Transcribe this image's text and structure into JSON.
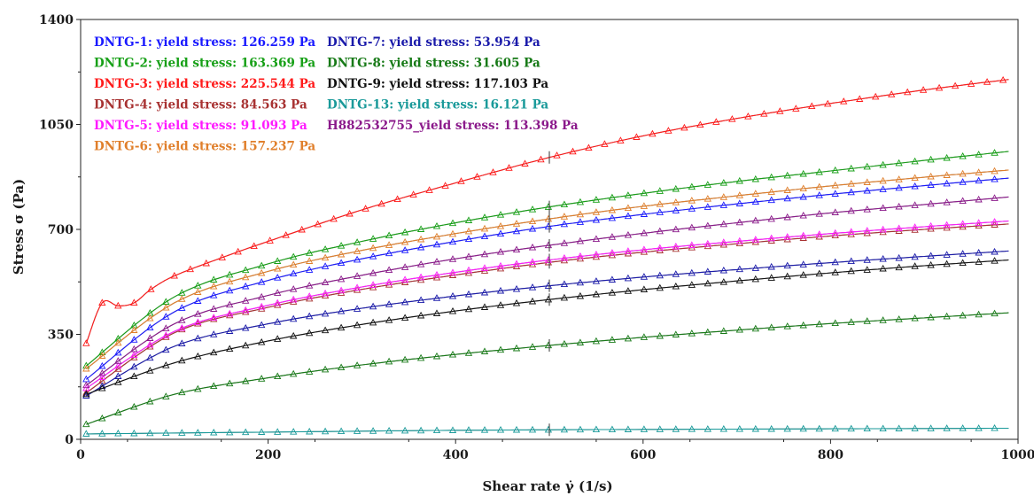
{
  "chart_data": {
    "type": "line",
    "xlabel": "Shear rate γ̇ (1/s)",
    "ylabel": "Stress σ (Pa)",
    "xlim": [
      0,
      1000
    ],
    "ylim": [
      0,
      1400
    ],
    "xticks": [
      0,
      200,
      400,
      600,
      800,
      1000
    ],
    "yticks": [
      0,
      350,
      700,
      1050,
      1400
    ],
    "xtick_labels": [
      "0",
      "200",
      "400",
      "600",
      "800",
      "1000"
    ],
    "ytick_labels": [
      "0",
      "350",
      "700",
      "1050",
      "1400"
    ],
    "grid": false,
    "legend_position": "top-left",
    "marker": "open-triangle",
    "fit_line_color": "#5a5a5a",
    "reference_marker_x": 500,
    "series": [
      {
        "name": "DNTG-1: yield stress: 126.259 Pa",
        "color": "#1a1aff",
        "x": [
          6,
          100,
          200,
          300,
          400,
          500,
          600,
          700,
          800,
          900,
          990
        ],
        "y": [
          200,
          425,
          530,
          602,
          660,
          710,
          750,
          785,
          817,
          846,
          871
        ]
      },
      {
        "name": "DNTG-2: yield stress: 163.369 Pa",
        "color": "#17a017",
        "x": [
          6,
          100,
          200,
          300,
          400,
          500,
          600,
          700,
          800,
          900,
          990
        ],
        "y": [
          245,
          475,
          585,
          660,
          722,
          775,
          820,
          860,
          895,
          930,
          960
        ]
      },
      {
        "name": "DNTG-3: yield stress: 225.544 Pa",
        "color": "#ff1a1a",
        "x": [
          6,
          23,
          40,
          57,
          75,
          100,
          150,
          200,
          300,
          400,
          500,
          600,
          700,
          800,
          900,
          990
        ],
        "y": [
          320,
          455,
          445,
          455,
          500,
          545,
          605,
          660,
          765,
          855,
          940,
          1012,
          1070,
          1120,
          1165,
          1200
        ]
      },
      {
        "name": "DNTG-4: yield stress: 84.563 Pa",
        "color": "#a83232",
        "x": [
          6,
          100,
          200,
          300,
          400,
          500,
          600,
          700,
          800,
          900,
          990
        ],
        "y": [
          155,
          355,
          440,
          500,
          548,
          590,
          624,
          652,
          678,
          700,
          718
        ]
      },
      {
        "name": "DNTG-5: yield stress: 91.093 Pa",
        "color": "#ff1aff",
        "x": [
          6,
          100,
          200,
          300,
          400,
          500,
          600,
          700,
          800,
          900,
          990
        ],
        "y": [
          170,
          360,
          447,
          508,
          557,
          598,
          632,
          660,
          686,
          709,
          728
        ]
      },
      {
        "name": "DNTG-6: yield stress: 157.237 Pa",
        "color": "#e07f2b",
        "x": [
          6,
          100,
          200,
          300,
          400,
          500,
          600,
          700,
          800,
          900,
          990
        ],
        "y": [
          235,
          455,
          560,
          630,
          686,
          735,
          777,
          812,
          845,
          874,
          898
        ]
      },
      {
        "name": "DNTG-7: yield stress: 53.954 Pa",
        "color": "#1a1aaa",
        "x": [
          6,
          100,
          200,
          300,
          400,
          500,
          600,
          700,
          800,
          900,
          990
        ],
        "y": [
          145,
          310,
          385,
          437,
          478,
          512,
          541,
          566,
          589,
          610,
          628
        ]
      },
      {
        "name": "DNTG-8: yield stress: 31.605 Pa",
        "color": "#177a17",
        "x": [
          6,
          100,
          200,
          300,
          400,
          500,
          600,
          700,
          800,
          900,
          990
        ],
        "y": [
          50,
          150,
          205,
          248,
          283,
          313,
          340,
          364,
          386,
          405,
          422
        ]
      },
      {
        "name": "DNTG-9: yield stress: 117.103 Pa",
        "color": "#111111",
        "x": [
          6,
          100,
          200,
          300,
          400,
          500,
          600,
          700,
          800,
          900,
          990
        ],
        "y": [
          150,
          255,
          328,
          383,
          428,
          466,
          499,
          528,
          555,
          579,
          598
        ]
      },
      {
        "name": "DNTG-13: yield stress: 16.121 Pa",
        "color": "#1a9a9a",
        "x": [
          6,
          200,
          400,
          600,
          800,
          990
        ],
        "y": [
          18,
          24,
          30,
          33,
          35,
          37
        ]
      },
      {
        "name": "H882532755_yield stress: 113.398 Pa",
        "color": "#8b1a8b",
        "x": [
          6,
          100,
          200,
          300,
          400,
          500,
          600,
          700,
          800,
          900,
          990
        ],
        "y": [
          180,
          385,
          480,
          547,
          602,
          647,
          687,
          722,
          755,
          783,
          808
        ]
      }
    ]
  }
}
